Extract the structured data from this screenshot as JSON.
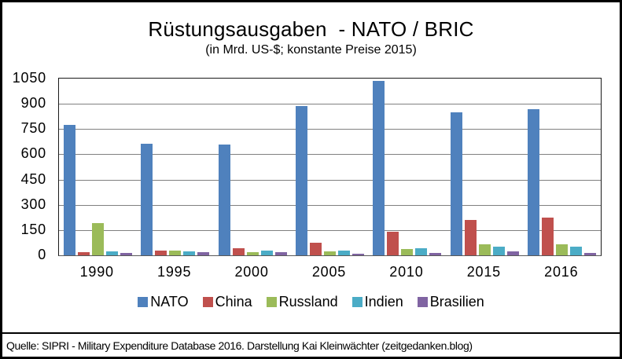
{
  "source_note": "Quelle: SIPRI - Military Expenditure Database 2016. Darstellung Kai Kleinwächter (zeitgedanken.blog)",
  "chart_data": {
    "type": "bar",
    "title": "Rüstungsausgaben  - NATO / BRIC",
    "subtitle": "(in Mrd. US-$; konstante Preise 2015)",
    "xlabel": "",
    "ylabel": "",
    "categories": [
      "1990",
      "1995",
      "2000",
      "2005",
      "2010",
      "2015",
      "2016"
    ],
    "series": [
      {
        "name": "NATO",
        "color": "#4F81BD",
        "values": [
          775,
          665,
          660,
          885,
          1035,
          850,
          870
        ]
      },
      {
        "name": "China",
        "color": "#C0504D",
        "values": [
          20,
          27,
          42,
          75,
          138,
          210,
          225
        ]
      },
      {
        "name": "Russland",
        "color": "#9BBB59",
        "values": [
          190,
          26,
          21,
          25,
          38,
          64,
          67
        ]
      },
      {
        "name": "Indien",
        "color": "#4BACC6",
        "values": [
          22,
          23,
          28,
          28,
          40,
          51,
          53
        ]
      },
      {
        "name": "Brasilien",
        "color": "#8064A2",
        "values": [
          16,
          18,
          17,
          11,
          14,
          22,
          14
        ]
      }
    ],
    "ylim": [
      0,
      1050
    ],
    "yticks": [
      0,
      150,
      300,
      450,
      600,
      750,
      900,
      1050
    ],
    "grid": true,
    "gridline_color": "#808080",
    "legend_position": "bottom"
  }
}
